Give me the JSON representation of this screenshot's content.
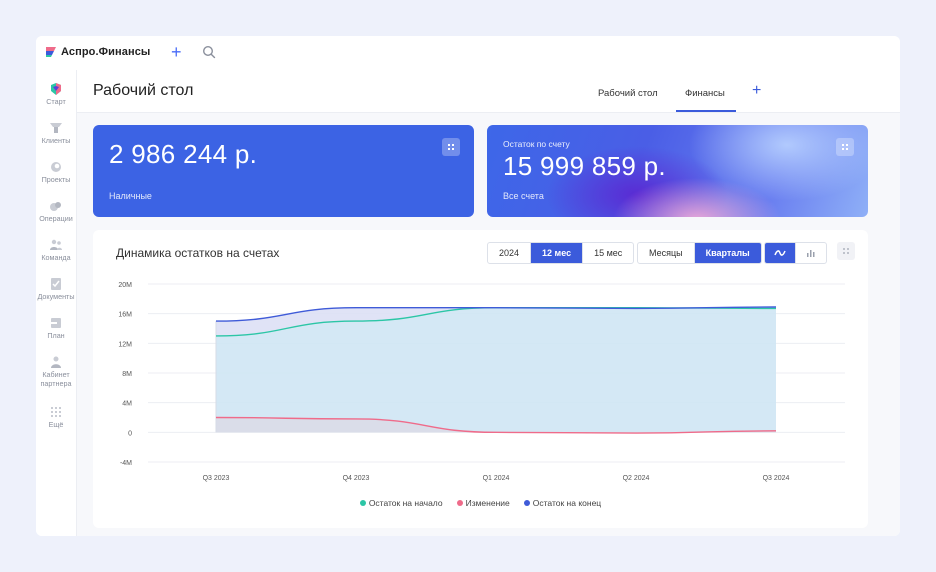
{
  "app": {
    "brand": "Аспро.Финансы"
  },
  "sidebar": {
    "items": [
      {
        "label": "Старт",
        "icon": "start-icon"
      },
      {
        "label": "Клиенты",
        "icon": "clients-icon"
      },
      {
        "label": "Проекты",
        "icon": "projects-icon"
      },
      {
        "label": "Операции",
        "icon": "operations-icon"
      },
      {
        "label": "Команда",
        "icon": "team-icon"
      },
      {
        "label": "Документы",
        "icon": "documents-icon"
      },
      {
        "label": "План",
        "icon": "plan-icon"
      },
      {
        "label": "Кабинет партнера",
        "icon": "partner-icon"
      },
      {
        "label": "Ещё",
        "icon": "more-icon"
      }
    ]
  },
  "header": {
    "title": "Рабочий стол",
    "tabs": [
      {
        "label": "Рабочий стол",
        "active": false
      },
      {
        "label": "Финансы",
        "active": true
      }
    ]
  },
  "cards": {
    "cash": {
      "amount": "2 986 244 р.",
      "label": "Наличные"
    },
    "balance": {
      "caption": "Остаток по счету",
      "amount": "15 999 859 р.",
      "label": "Все счета"
    }
  },
  "chart_panel": {
    "title": "Динамика остатков на счетах",
    "period_options": [
      {
        "label": "2024",
        "active": false
      },
      {
        "label": "12 мес",
        "active": true
      },
      {
        "label": "15 мес",
        "active": false
      }
    ],
    "grouping_options": [
      {
        "label": "Месяцы",
        "active": false
      },
      {
        "label": "Кварталы",
        "active": true
      }
    ],
    "view_options": [
      {
        "icon": "line-chart-icon",
        "active": true
      },
      {
        "icon": "bar-chart-icon",
        "active": false
      }
    ]
  },
  "colors": {
    "accent": "#3b5bdb",
    "card_blue": "#3c63e4",
    "series_start": "#2cc6a6",
    "series_change": "#ef6b8a",
    "series_end": "#3f5bd8"
  },
  "chart_data": {
    "type": "area",
    "title": "Динамика остатков на счетах",
    "categories": [
      "Q3 2023",
      "Q4 2023",
      "Q1 2024",
      "Q2 2024",
      "Q3 2024"
    ],
    "y_ticks": [
      "20M",
      "16M",
      "12M",
      "8M",
      "4M",
      "0",
      "-4M"
    ],
    "ylim": [
      -4,
      20
    ],
    "y_unit": "M",
    "grid": true,
    "legend_position": "bottom",
    "series": [
      {
        "name": "Остаток на начало",
        "color": "#2cc6a6",
        "values": [
          13.0,
          15.0,
          16.8,
          16.8,
          16.7
        ]
      },
      {
        "name": "Изменение",
        "color": "#ef6b8a",
        "values": [
          2.0,
          1.8,
          0.0,
          -0.1,
          0.2
        ]
      },
      {
        "name": "Остаток на конец",
        "color": "#3f5bd8",
        "values": [
          15.0,
          16.8,
          16.8,
          16.7,
          16.9
        ]
      }
    ]
  }
}
